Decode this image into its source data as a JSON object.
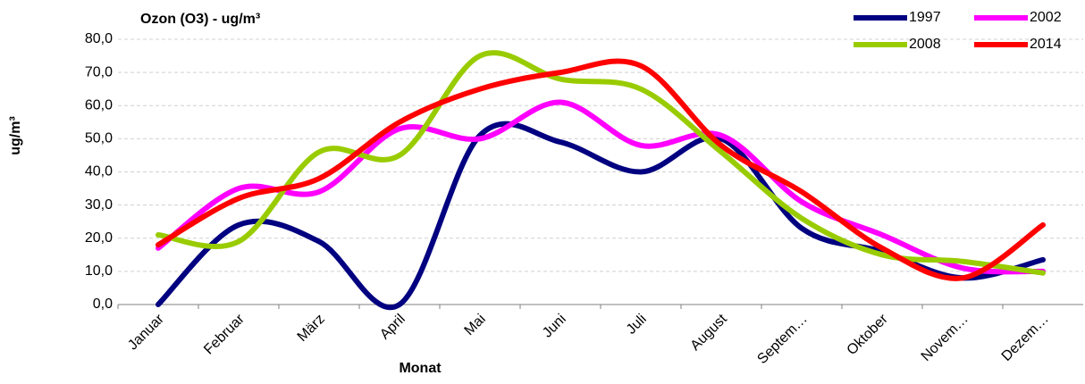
{
  "chart_data": {
    "type": "line",
    "title": "Ozon (O3) - ug/m³",
    "x_label": "Monat",
    "y_label": "ug/m³",
    "categories": [
      "Januar",
      "Februar",
      "März",
      "April",
      "Mai",
      "Juni",
      "Juli",
      "August",
      "Septem…",
      "Oktober",
      "Novem…",
      "Dezem…"
    ],
    "series": [
      {
        "name": "1997",
        "color": "#000080",
        "values": [
          0,
          24,
          19,
          0,
          51,
          49,
          40,
          50,
          23,
          16,
          8,
          13.5
        ]
      },
      {
        "name": "2002",
        "color": "#ff00ff",
        "values": [
          17,
          35,
          34,
          53,
          50,
          61,
          48,
          51,
          31,
          21,
          11,
          10
        ]
      },
      {
        "name": "2008",
        "color": "#99cc00",
        "values": [
          21,
          19,
          46,
          45,
          75,
          68,
          65,
          46,
          26,
          15,
          13,
          9.5
        ]
      },
      {
        "name": "2014",
        "color": "#ff0000",
        "values": [
          18,
          32,
          38,
          55,
          65,
          70,
          72,
          48,
          34,
          17,
          8,
          24
        ]
      }
    ],
    "ylim": [
      0,
      80
    ],
    "yticks": [
      {
        "value": 0,
        "label": "0,0"
      },
      {
        "value": 10,
        "label": "10,0"
      },
      {
        "value": 20,
        "label": "20,0"
      },
      {
        "value": 30,
        "label": "30,0"
      },
      {
        "value": 40,
        "label": "40,0"
      },
      {
        "value": 50,
        "label": "50,0"
      },
      {
        "value": 60,
        "label": "60,0"
      },
      {
        "value": 70,
        "label": "70,0"
      },
      {
        "value": 80,
        "label": "80,0"
      }
    ],
    "grid": true,
    "smooth": true,
    "legend": "top-right"
  }
}
